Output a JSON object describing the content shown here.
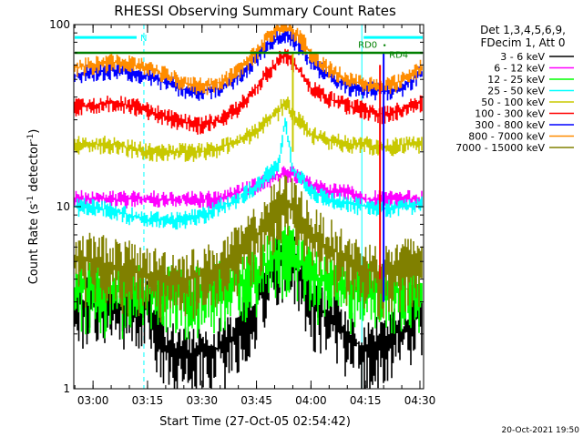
{
  "chart_data": {
    "type": "line",
    "title": "RHESSI Observing Summary Count Rates",
    "xlabel": "Start Time (27-Oct-05 02:54:42)",
    "ylabel": "Count Rate (s",
    "ylabel_sup": "-1",
    "ylabel_tail": " detector",
    "ylabel_close": ")",
    "y_scale": "log",
    "ylim": [
      1,
      100
    ],
    "y_ticks": [
      {
        "value": 1,
        "label": "1"
      },
      {
        "value": 10,
        "label": "10"
      },
      {
        "value": 100,
        "label": "100"
      }
    ],
    "x_time_range": [
      "02:54:42",
      "04:31:00"
    ],
    "x_ticks": [
      {
        "time": "03:00",
        "label": "03:00"
      },
      {
        "time": "03:15",
        "label": "03:15"
      },
      {
        "time": "03:30",
        "label": "03:30"
      },
      {
        "time": "03:45",
        "label": "03:45"
      },
      {
        "time": "04:00",
        "label": "04:00"
      },
      {
        "time": "04:15",
        "label": "04:15"
      },
      {
        "time": "04:30",
        "label": "04:30"
      }
    ],
    "legend_header": [
      "Det 1,3,4,5,6,9,",
      "FDecim 1, Att 0"
    ],
    "legend_position": "right",
    "times": [
      "02:54:42",
      "03:00",
      "03:05",
      "03:10",
      "03:15",
      "03:20",
      "03:25",
      "03:30",
      "03:35",
      "03:40",
      "03:45",
      "03:48",
      "03:51",
      "03:53",
      "03:55",
      "03:58",
      "04:00",
      "04:05",
      "04:10",
      "04:15",
      "04:20",
      "04:25",
      "04:31"
    ],
    "series": [
      {
        "name": "3 - 6 keV",
        "color": "#000000",
        "values": [
          3,
          3,
          2.9,
          2.8,
          2.7,
          1.7,
          1.5,
          1.6,
          1.7,
          2,
          3,
          4,
          5,
          5.2,
          5,
          4,
          3,
          2.5,
          2,
          1.6,
          1.8,
          2.1,
          2.6
        ]
      },
      {
        "name": "6 - 12 keV",
        "color": "#ff00ff",
        "values": [
          11,
          11,
          11,
          11,
          11,
          11,
          11,
          11,
          11,
          12,
          13,
          14,
          15,
          15,
          15,
          14,
          13,
          12,
          12,
          11,
          11,
          11,
          11
        ]
      },
      {
        "name": "12 - 25 keV",
        "color": "#00ff00",
        "values": [
          3.5,
          3.5,
          3.4,
          3.4,
          3.3,
          3.3,
          3.3,
          3.4,
          3.5,
          3.8,
          4.3,
          5,
          5.5,
          5.6,
          5.5,
          4.8,
          4.2,
          3.8,
          3.6,
          3.4,
          3.4,
          3.5,
          3.6
        ]
      },
      {
        "name": "25 - 50 keV",
        "color": "#00ffff",
        "values": [
          10,
          10,
          9.5,
          9,
          8.5,
          8.5,
          8.5,
          9,
          10,
          11,
          13,
          15,
          17,
          30,
          16,
          14,
          12,
          11,
          10.5,
          10,
          9.8,
          10,
          10.5
        ]
      },
      {
        "name": "50 - 100 keV",
        "color": "#c8c800",
        "values": [
          22,
          22,
          22,
          21,
          20,
          20,
          20,
          20,
          21,
          23,
          26,
          30,
          33,
          38,
          32,
          28,
          25,
          23,
          22,
          22,
          21,
          22,
          22
        ]
      },
      {
        "name": "100 - 300 keV",
        "color": "#ff0000",
        "values": [
          35,
          36,
          37,
          36,
          34,
          31,
          29,
          28,
          30,
          35,
          45,
          55,
          63,
          70,
          62,
          52,
          45,
          39,
          36,
          34,
          32,
          34,
          38
        ]
      },
      {
        "name": "300 - 800 keV",
        "color": "#0000ff",
        "values": [
          52,
          55,
          56,
          55,
          52,
          48,
          44,
          43,
          45,
          52,
          65,
          77,
          85,
          88,
          83,
          72,
          62,
          52,
          46,
          44,
          43,
          45,
          55
        ]
      },
      {
        "name": "800 - 7000 keV",
        "color": "#ff8c00",
        "values": [
          58,
          60,
          62,
          61,
          58,
          53,
          48,
          46,
          48,
          55,
          70,
          85,
          95,
          98,
          92,
          80,
          68,
          57,
          50,
          47,
          46,
          49,
          60
        ]
      },
      {
        "name": "7000 - 15000 keV",
        "color": "#808000",
        "values": [
          5,
          5,
          4.8,
          4.5,
          4.2,
          4.1,
          4,
          4.2,
          4.6,
          5.5,
          7,
          8.5,
          10,
          10.5,
          10,
          8.5,
          7,
          6,
          5,
          4.5,
          4.3,
          4.6,
          5
        ]
      }
    ],
    "spike_series": [
      {
        "name": "300 - 800 keV",
        "color": "#0000ff",
        "time": "04:20",
        "values": [
          3,
          70
        ]
      },
      {
        "name": "100 - 300 keV",
        "color": "#ff0000",
        "time": "04:19",
        "values": [
          4,
          60
        ]
      },
      {
        "name": "50 - 100 keV",
        "color": "#c8c800",
        "time": "03:55",
        "values": [
          20,
          70
        ]
      }
    ],
    "markers": {
      "night_label": "N",
      "night_span": [
        "02:54:42",
        "03:14"
      ],
      "night_level": 85,
      "saa_span": [
        "04:14",
        "04:31"
      ],
      "saa_level": 85,
      "flag_level": 70,
      "rd_labels": [
        "RD0",
        "RD4"
      ],
      "rd_levels": [
        77,
        68
      ],
      "rd_time": "04:18",
      "vlines_solid": [
        "02:54:42",
        "04:14",
        "04:31"
      ],
      "vlines_dashed": [
        "03:14",
        "04:31"
      ]
    },
    "grid": false
  },
  "footer": {
    "timestamp": "20-Oct-2021 19:50"
  }
}
